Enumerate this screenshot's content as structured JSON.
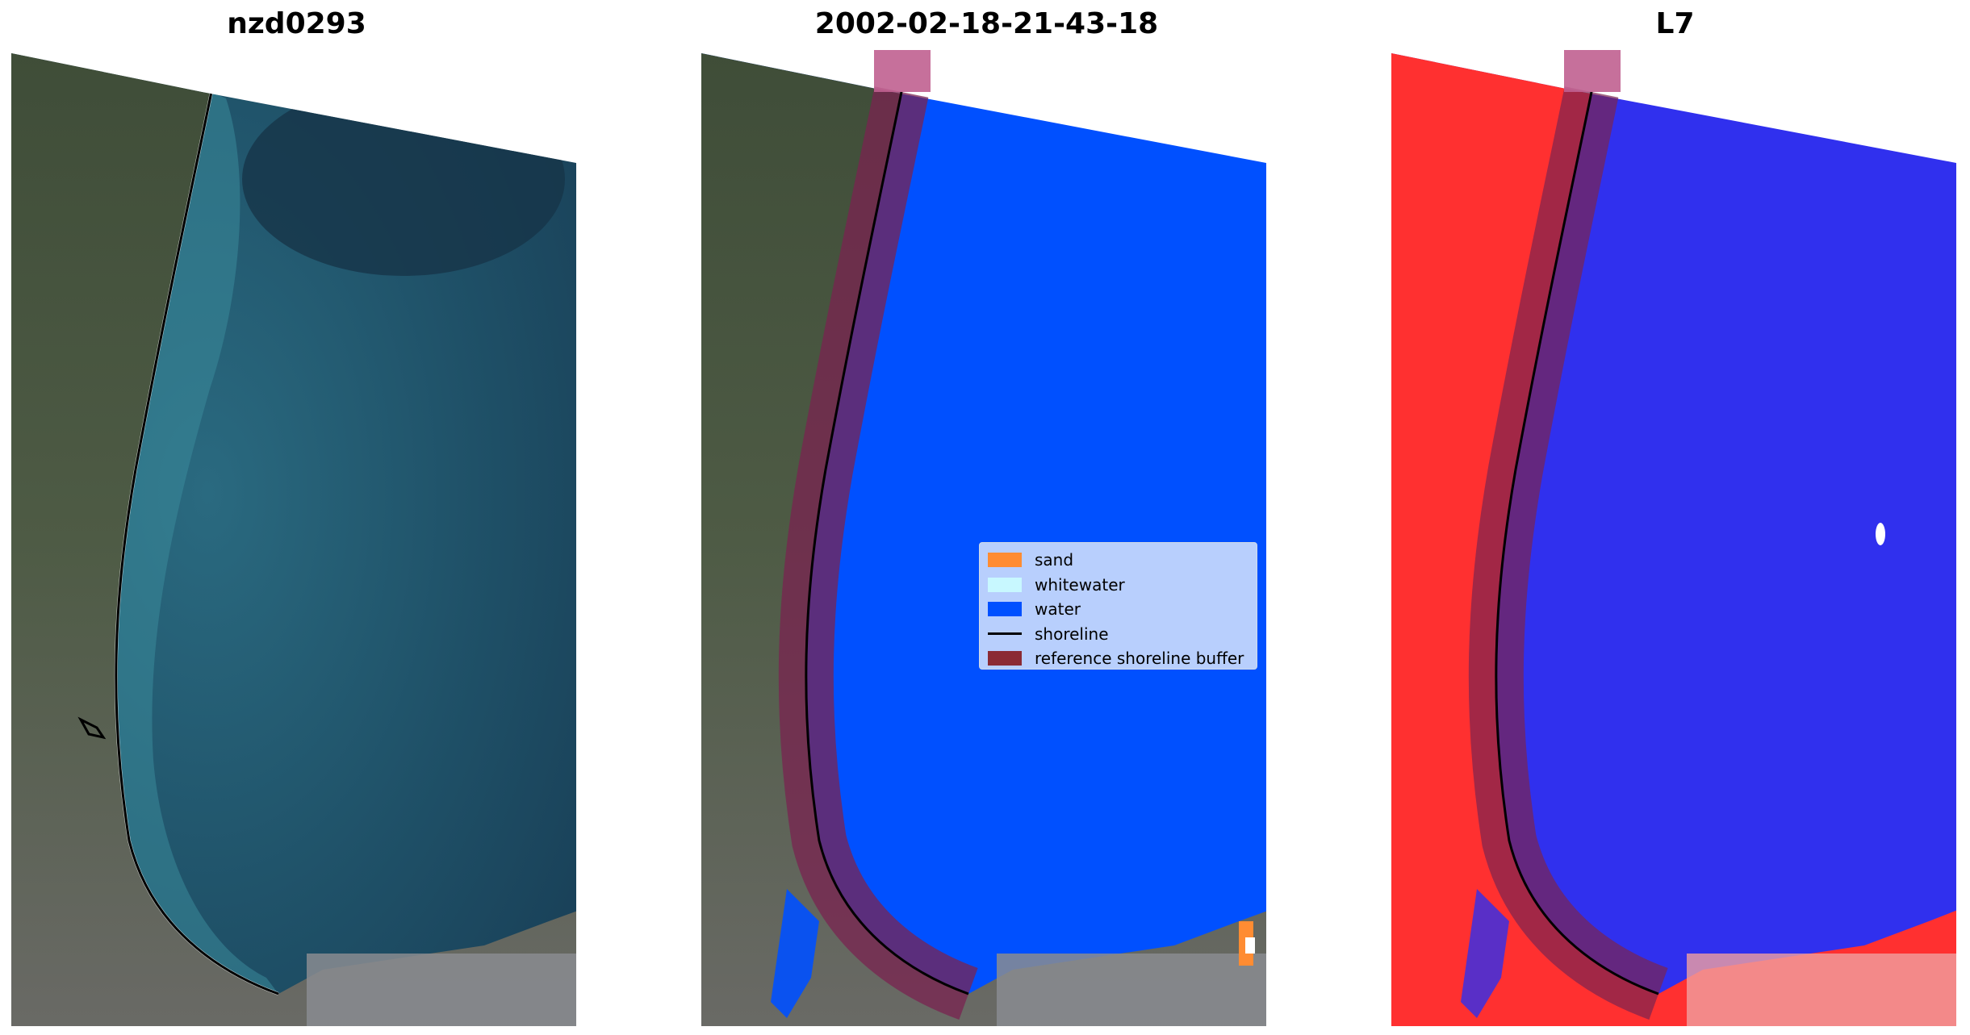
{
  "panels": [
    {
      "title": "nzd0293"
    },
    {
      "title": "2002-02-18-21-43-18"
    },
    {
      "title": "L7"
    }
  ],
  "legend": {
    "items": [
      {
        "label": "sand",
        "color": "#ff8c32",
        "kind": "patch"
      },
      {
        "label": "whitewater",
        "color": "#c8f8ff",
        "kind": "patch"
      },
      {
        "label": "water",
        "color": "#0050ff",
        "kind": "patch"
      },
      {
        "label": "shoreline",
        "color": "#000000",
        "kind": "line"
      },
      {
        "label": "reference shoreline buffer",
        "color": "#8b2a34",
        "kind": "patch"
      }
    ]
  },
  "colors": {
    "water_rgb": "#1c4a60",
    "water_deep": "#173a50",
    "land_rgb": "#4b5a44",
    "classified_water": "#0050ff",
    "buffer": "#7a2350",
    "index_land": "#ff3030",
    "index_water": "#3030ee"
  }
}
